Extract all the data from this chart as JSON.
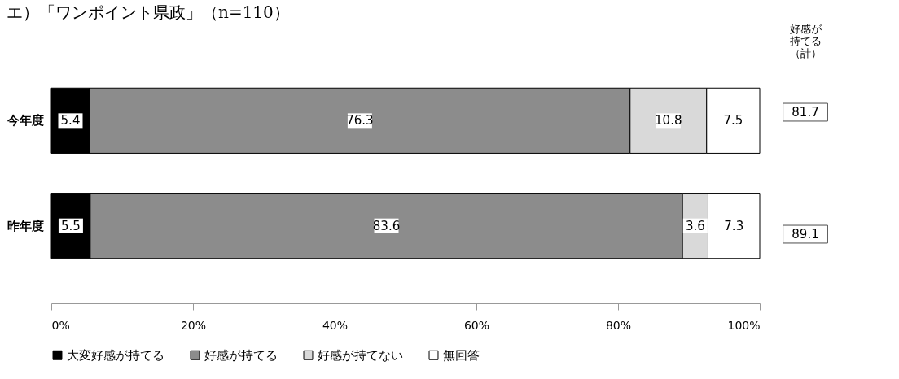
{
  "chart_data": {
    "type": "bar",
    "orientation": "horizontal",
    "stacked": true,
    "title": "エ）「ワンポイント県政」（n=110）",
    "categories": [
      "今年度",
      "昨年度"
    ],
    "series": [
      {
        "name": "大変好感が持てる",
        "color": "#000000",
        "values": [
          5.4,
          5.5
        ]
      },
      {
        "name": "好感が持てる",
        "color": "#8c8c8c",
        "values": [
          76.3,
          83.6
        ]
      },
      {
        "name": "好感が持てない",
        "color": "#d9d9d9",
        "values": [
          10.8,
          3.6
        ]
      },
      {
        "name": "無回答",
        "color": "#ffffff",
        "values": [
          7.5,
          7.3
        ]
      }
    ],
    "xlim": [
      0,
      100
    ],
    "xticks": [
      {
        "value": 0,
        "label": "0%"
      },
      {
        "value": 20,
        "label": "20%"
      },
      {
        "value": 40,
        "label": "40%"
      },
      {
        "value": 60,
        "label": "60%"
      },
      {
        "value": 80,
        "label": "80%"
      },
      {
        "value": 100,
        "label": "100%"
      }
    ],
    "data_labels": true,
    "annotations": [
      "好感が持てる（計）",
      "81.7",
      "89.1"
    ],
    "legend": "bottom",
    "grid": false
  }
}
